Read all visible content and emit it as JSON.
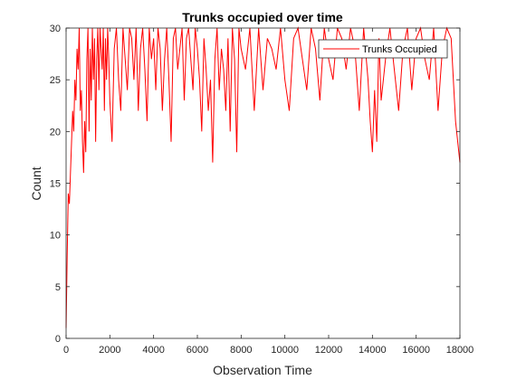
{
  "chart_data": {
    "type": "line",
    "title": "Trunks occupied over time",
    "xlabel": "Observation Time",
    "ylabel": "Count",
    "xlim": [
      0,
      18000
    ],
    "ylim": [
      0,
      30
    ],
    "xticks": [
      0,
      2000,
      4000,
      6000,
      8000,
      10000,
      12000,
      14000,
      16000,
      18000
    ],
    "yticks": [
      0,
      5,
      10,
      15,
      20,
      25,
      30
    ],
    "grid": false,
    "legend": {
      "position": "top-right",
      "entries": [
        "Trunks Occupied"
      ]
    },
    "series": [
      {
        "name": "Trunks Occupied",
        "color": "#ff0000",
        "x": [
          0,
          50,
          100,
          150,
          200,
          250,
          300,
          350,
          400,
          450,
          500,
          550,
          600,
          650,
          700,
          750,
          800,
          850,
          900,
          950,
          1000,
          1050,
          1100,
          1150,
          1200,
          1250,
          1300,
          1350,
          1400,
          1450,
          1500,
          1550,
          1600,
          1650,
          1700,
          1750,
          1800,
          1850,
          1900,
          1950,
          2000,
          2100,
          2200,
          2300,
          2400,
          2500,
          2600,
          2700,
          2800,
          2900,
          3000,
          3100,
          3200,
          3300,
          3400,
          3500,
          3600,
          3700,
          3800,
          3900,
          4000,
          4100,
          4200,
          4300,
          4400,
          4500,
          4600,
          4700,
          4800,
          4900,
          5000,
          5100,
          5200,
          5300,
          5400,
          5500,
          5600,
          5700,
          5800,
          5900,
          6000,
          6100,
          6200,
          6300,
          6400,
          6500,
          6600,
          6700,
          6800,
          6900,
          7000,
          7100,
          7200,
          7300,
          7400,
          7500,
          7600,
          7700,
          7800,
          7900,
          8000,
          8200,
          8400,
          8600,
          8800,
          9000,
          9200,
          9400,
          9600,
          9800,
          10000,
          10200,
          10400,
          10600,
          10800,
          11000,
          11200,
          11400,
          11600,
          11800,
          12000,
          12200,
          12400,
          12600,
          12800,
          13000,
          13200,
          13400,
          13600,
          13800,
          13900,
          14000,
          14100,
          14200,
          14300,
          14400,
          14600,
          14800,
          15000,
          15200,
          15400,
          15600,
          15800,
          16000,
          16200,
          16400,
          16600,
          16800,
          17000,
          17200,
          17400,
          17600,
          17700,
          17800,
          17900,
          18000
        ],
        "y": [
          1,
          8,
          14,
          13,
          16,
          19,
          22,
          20,
          25,
          23,
          28,
          26,
          30,
          22,
          24,
          19,
          16,
          21,
          18,
          27,
          30,
          20,
          28,
          23,
          30,
          25,
          29,
          19,
          27,
          30,
          24,
          30,
          28,
          26,
          30,
          22,
          29,
          25,
          30,
          27,
          23,
          19,
          28,
          30,
          25,
          22,
          30,
          27,
          24,
          30,
          29,
          25,
          30,
          22,
          28,
          30,
          26,
          21,
          30,
          27,
          29,
          24,
          30,
          28,
          22,
          27,
          30,
          25,
          19,
          29,
          30,
          26,
          28,
          30,
          23,
          29,
          30,
          27,
          24,
          30,
          28,
          25,
          20,
          29,
          26,
          22,
          25,
          17,
          27,
          30,
          24,
          28,
          26,
          22,
          29,
          20,
          30,
          27,
          18,
          30,
          28,
          26,
          30,
          22,
          30,
          24,
          29,
          28,
          26,
          30,
          25,
          22,
          29,
          30,
          27,
          24,
          30,
          28,
          23,
          30,
          27,
          25,
          30,
          29,
          26,
          30,
          28,
          22,
          30,
          25,
          21,
          18,
          24,
          19,
          29,
          23,
          27,
          30,
          26,
          22,
          28,
          30,
          24,
          29,
          30,
          27,
          25,
          30,
          22,
          28,
          30,
          29,
          25,
          21,
          19,
          17
        ]
      }
    ]
  }
}
